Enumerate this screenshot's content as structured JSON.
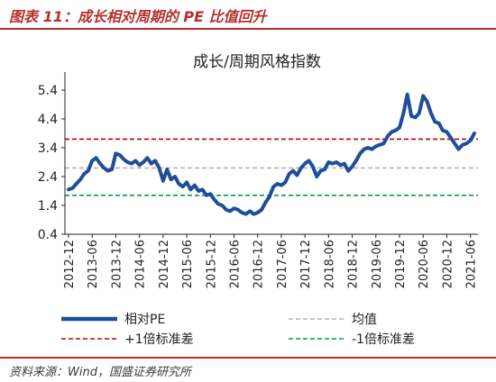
{
  "header": {
    "caption": "图表 11：成长相对周期的 PE 比值回升"
  },
  "footer": {
    "source": "资料来源：Wind，国盛证券研究所"
  },
  "colors": {
    "brand": "#b5302e",
    "series_main": "#1f4e99",
    "mean": "#b3b3b3",
    "upper": "#c00000",
    "lower": "#00a14b"
  },
  "chart_data": {
    "type": "line",
    "title": "成长/周期风格指数",
    "xlabel": "",
    "ylabel": "",
    "ylim": [
      0.4,
      5.9
    ],
    "yticks": [
      0.4,
      1.4,
      2.4,
      3.4,
      4.4,
      5.4
    ],
    "ytick_labels": [
      "0.4",
      "1.4",
      "2.4",
      "3.4",
      "4.4",
      "5.4"
    ],
    "xticks": [
      "2012-12",
      "2013-06",
      "2013-12",
      "2014-06",
      "2014-12",
      "2015-06",
      "2015-12",
      "2016-06",
      "2016-12",
      "2017-06",
      "2017-12",
      "2018-06",
      "2018-12",
      "2019-06",
      "2019-12",
      "2020-06",
      "2020-12",
      "2021-06"
    ],
    "grid": false,
    "legend_position": "bottom",
    "x": [
      "2012-12",
      "2013-01",
      "2013-02",
      "2013-03",
      "2013-04",
      "2013-05",
      "2013-06",
      "2013-07",
      "2013-08",
      "2013-09",
      "2013-10",
      "2013-11",
      "2013-12",
      "2014-01",
      "2014-02",
      "2014-03",
      "2014-04",
      "2014-05",
      "2014-06",
      "2014-07",
      "2014-08",
      "2014-09",
      "2014-10",
      "2014-11",
      "2014-12",
      "2015-01",
      "2015-02",
      "2015-03",
      "2015-04",
      "2015-05",
      "2015-06",
      "2015-07",
      "2015-08",
      "2015-09",
      "2015-10",
      "2015-11",
      "2015-12",
      "2016-01",
      "2016-02",
      "2016-03",
      "2016-04",
      "2016-05",
      "2016-06",
      "2016-07",
      "2016-08",
      "2016-09",
      "2016-10",
      "2016-11",
      "2016-12",
      "2017-01",
      "2017-02",
      "2017-03",
      "2017-04",
      "2017-05",
      "2017-06",
      "2017-07",
      "2017-08",
      "2017-09",
      "2017-10",
      "2017-11",
      "2017-12",
      "2018-01",
      "2018-02",
      "2018-03",
      "2018-04",
      "2018-05",
      "2018-06",
      "2018-07",
      "2018-08",
      "2018-09",
      "2018-10",
      "2018-11",
      "2018-12",
      "2019-01",
      "2019-02",
      "2019-03",
      "2019-04",
      "2019-05",
      "2019-06",
      "2019-07",
      "2019-08",
      "2019-09",
      "2019-10",
      "2019-11",
      "2019-12",
      "2020-01",
      "2020-02",
      "2020-03",
      "2020-04",
      "2020-05",
      "2020-06",
      "2020-07",
      "2020-08",
      "2020-09",
      "2020-10",
      "2020-11",
      "2020-12",
      "2021-01",
      "2021-02",
      "2021-03",
      "2021-04",
      "2021-05",
      "2021-06",
      "2021-07"
    ],
    "series": [
      {
        "name": "相对PE",
        "style": "solid-thick",
        "values": [
          1.95,
          2.0,
          2.15,
          2.3,
          2.5,
          2.6,
          2.95,
          3.05,
          2.85,
          2.7,
          2.6,
          2.65,
          3.2,
          3.15,
          3.0,
          2.9,
          2.85,
          2.95,
          2.8,
          2.9,
          3.05,
          2.85,
          2.95,
          2.7,
          2.25,
          2.65,
          2.3,
          2.4,
          2.15,
          2.05,
          2.2,
          1.95,
          2.1,
          1.9,
          1.95,
          1.75,
          1.8,
          1.6,
          1.45,
          1.4,
          1.25,
          1.2,
          1.3,
          1.25,
          1.15,
          1.1,
          1.2,
          1.1,
          1.15,
          1.25,
          1.5,
          1.7,
          2.05,
          2.15,
          2.1,
          2.2,
          2.5,
          2.6,
          2.45,
          2.7,
          2.85,
          2.95,
          2.75,
          2.4,
          2.6,
          2.65,
          2.9,
          2.85,
          2.9,
          2.8,
          2.85,
          2.6,
          2.75,
          2.95,
          3.2,
          3.35,
          3.4,
          3.35,
          3.45,
          3.5,
          3.55,
          3.8,
          3.95,
          4.0,
          4.1,
          4.6,
          5.25,
          4.5,
          4.45,
          4.6,
          5.2,
          5.0,
          4.6,
          4.3,
          4.25,
          4.0,
          3.95,
          3.75,
          3.55,
          3.35,
          3.5,
          3.55,
          3.65,
          3.9
        ]
      },
      {
        "name": "均值",
        "style": "dashed",
        "constant": 2.7
      },
      {
        "name": "+1倍标准差",
        "style": "dashed",
        "constant": 3.7
      },
      {
        "name": "-1倍标准差",
        "style": "dashed",
        "constant": 1.75
      }
    ]
  }
}
